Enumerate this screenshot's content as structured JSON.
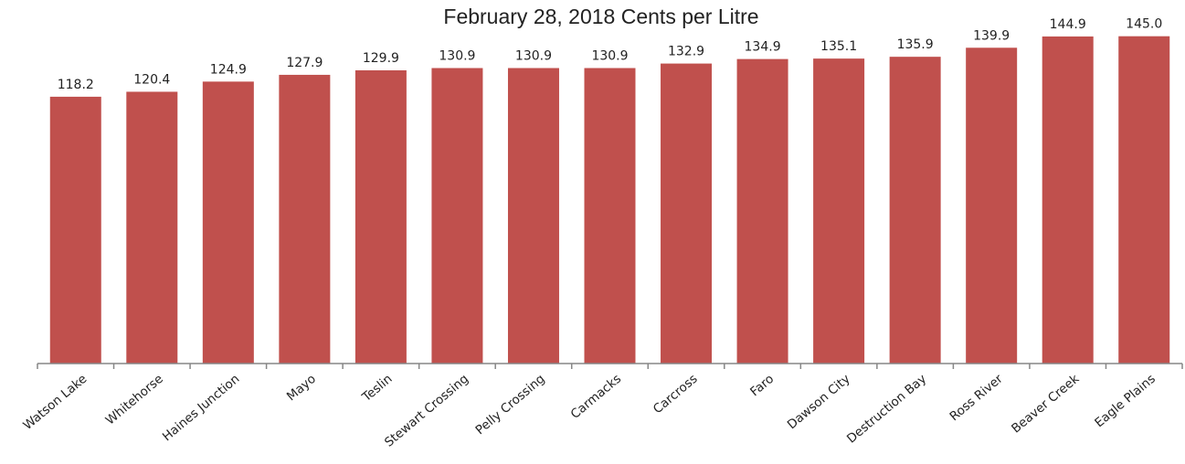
{
  "chart_data": {
    "type": "bar",
    "title": "February 28, 2018 Cents per Litre",
    "xlabel": "",
    "ylabel": "",
    "categories": [
      "Watson Lake",
      "Whitehorse",
      "Haines Junction",
      "Mayo",
      "Teslin",
      "Stewart Crossing",
      "Pelly Crossing",
      "Carmacks",
      "Carcross",
      "Faro",
      "Dawson City",
      "Destruction Bay",
      "Ross River",
      "Beaver Creek",
      "Eagle Plains"
    ],
    "values": [
      118.2,
      120.4,
      124.9,
      127.9,
      129.9,
      130.9,
      130.9,
      130.9,
      132.9,
      134.9,
      135.1,
      135.9,
      139.9,
      144.9,
      145.0
    ],
    "data_labels": [
      "118.2",
      "120.4",
      "124.9",
      "127.9",
      "129.9",
      "130.9",
      "130.9",
      "130.9",
      "132.9",
      "134.9",
      "135.1",
      "135.9",
      "139.9",
      "144.9",
      "145.0"
    ],
    "ylim": [
      0,
      147.7
    ],
    "grid": false,
    "legend": "none",
    "colors": {
      "bar": "#c0504d",
      "axis": "#868686",
      "text": "#222222"
    }
  }
}
